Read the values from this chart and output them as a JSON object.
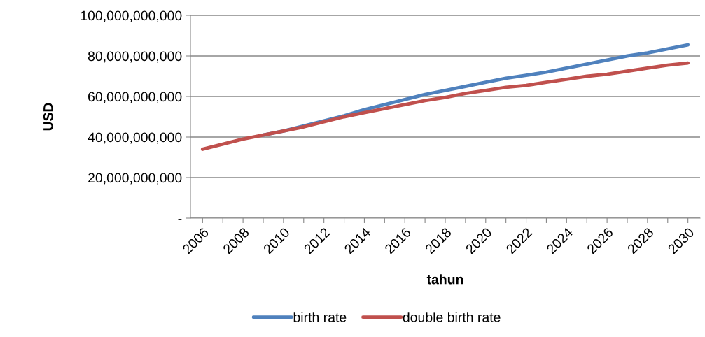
{
  "chart_data": {
    "type": "line",
    "xlabel": "tahun",
    "ylabel": "USD",
    "categories": [
      "2006",
      null,
      "2008",
      null,
      "2010",
      null,
      "2012",
      null,
      "2014",
      null,
      "2016",
      null,
      "2018",
      null,
      "2020",
      null,
      "2022",
      null,
      "2024",
      null,
      "2026",
      null,
      "2028",
      null,
      "2030"
    ],
    "series": [
      {
        "name": "birth rate",
        "color": "#4f81bd",
        "values": [
          null,
          null,
          null,
          41000000000,
          43000000000,
          45500000000,
          48000000000,
          50500000000,
          53500000000,
          56000000000,
          58500000000,
          61000000000,
          63000000000,
          65000000000,
          67000000000,
          69000000000,
          70500000000,
          72000000000,
          74000000000,
          76000000000,
          78000000000,
          80000000000,
          81500000000,
          83500000000,
          85500000000
        ]
      },
      {
        "name": "double birth rate",
        "color": "#c0504d",
        "values": [
          34000000000,
          36500000000,
          39000000000,
          41000000000,
          43000000000,
          45000000000,
          47500000000,
          50000000000,
          52000000000,
          54000000000,
          56000000000,
          58000000000,
          59500000000,
          61500000000,
          63000000000,
          64500000000,
          65500000000,
          67000000000,
          68500000000,
          70000000000,
          71000000000,
          72500000000,
          74000000000,
          75500000000,
          76500000000
        ]
      }
    ],
    "ylim": [
      0,
      100000000000
    ],
    "yticks": [
      {
        "value": 0,
        "label": "-"
      },
      {
        "value": 20000000000,
        "label": "20,000,000,000"
      },
      {
        "value": 40000000000,
        "label": "40,000,000,000"
      },
      {
        "value": 60000000000,
        "label": "60,000,000,000"
      },
      {
        "value": 80000000000,
        "label": "80,000,000,000"
      },
      {
        "value": 100000000000,
        "label": "100,000,000,000"
      }
    ],
    "grid": "y",
    "legend": "bottom",
    "marker": "none",
    "line_style": "solid"
  }
}
